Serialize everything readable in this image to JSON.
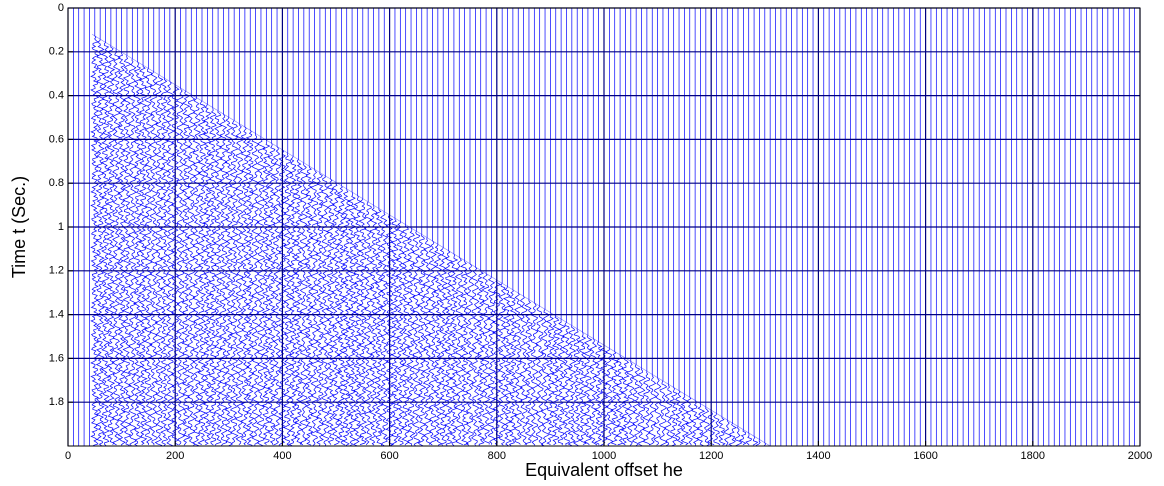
{
  "chart_data": {
    "type": "wiggle",
    "xlabel": "Equivalent offset he",
    "ylabel": "Time t (Sec.)",
    "xlim": [
      0,
      2000
    ],
    "xticks": [
      0,
      200,
      400,
      600,
      800,
      1000,
      1200,
      1400,
      1600,
      1800,
      2000
    ],
    "ylim": [
      0,
      2
    ],
    "yticks": [
      0,
      0.2,
      0.4,
      0.6,
      0.8,
      1,
      1.2,
      1.4,
      1.6,
      1.8
    ],
    "y_inverted": true,
    "grid": true,
    "color": "#0000ff",
    "first_break": {
      "x": [
        45,
        1310
      ],
      "values": [
        0.12,
        2.0
      ]
    }
  }
}
